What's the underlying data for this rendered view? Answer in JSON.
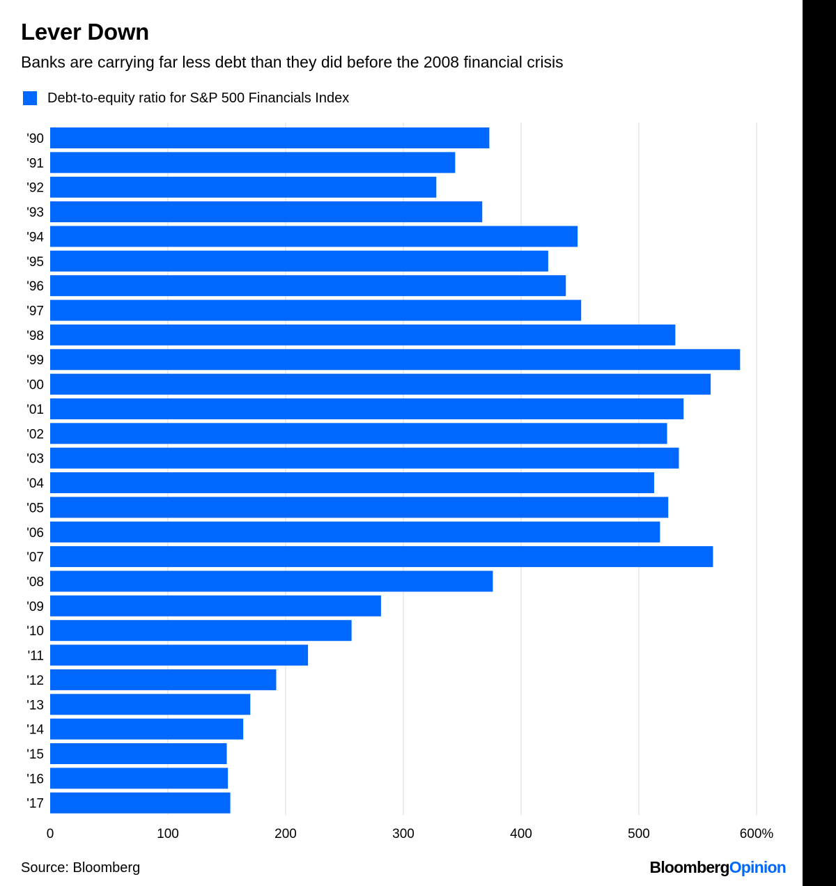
{
  "title": "Lever Down",
  "subtitle": "Banks are carrying far less debt than they did before the 2008 financial crisis",
  "legend": {
    "label": "Debt-to-equity ratio for S&P 500 Financials Index"
  },
  "colors": {
    "bar": "#0068ff",
    "grid": "#e6e6e6",
    "text": "#000000"
  },
  "footer": {
    "source": "Source: Bloomberg",
    "brand_a": "Bloomberg",
    "brand_b": "Opinion"
  },
  "chart_data": {
    "type": "bar",
    "orientation": "horizontal",
    "title": "Lever Down",
    "subtitle": "Banks are carrying far less debt than they did before the 2008 financial crisis",
    "xlabel": "",
    "ylabel": "",
    "xlim": [
      0,
      600
    ],
    "x_ticks": [
      {
        "value": 0,
        "label": "0"
      },
      {
        "value": 100,
        "label": "100"
      },
      {
        "value": 200,
        "label": "200"
      },
      {
        "value": 300,
        "label": "300"
      },
      {
        "value": 400,
        "label": "400"
      },
      {
        "value": 500,
        "label": "500"
      },
      {
        "value": 600,
        "label": "600%"
      }
    ],
    "grid": true,
    "legend_position": "top-left",
    "series": [
      {
        "name": "Debt-to-equity ratio for S&P 500 Financials Index"
      }
    ],
    "categories": [
      "'90",
      "'91",
      "'92",
      "'93",
      "'94",
      "'95",
      "'96",
      "'97",
      "'98",
      "'99",
      "'00",
      "'01",
      "'02",
      "'03",
      "'04",
      "'05",
      "'06",
      "'07",
      "'08",
      "'09",
      "'10",
      "'11",
      "'12",
      "'13",
      "'14",
      "'15",
      "'16",
      "'17"
    ],
    "values": [
      373,
      344,
      328,
      367,
      448,
      423,
      438,
      451,
      531,
      586,
      561,
      538,
      524,
      534,
      513,
      525,
      518,
      563,
      376,
      281,
      256,
      219,
      192,
      170,
      164,
      150,
      151,
      153
    ]
  }
}
